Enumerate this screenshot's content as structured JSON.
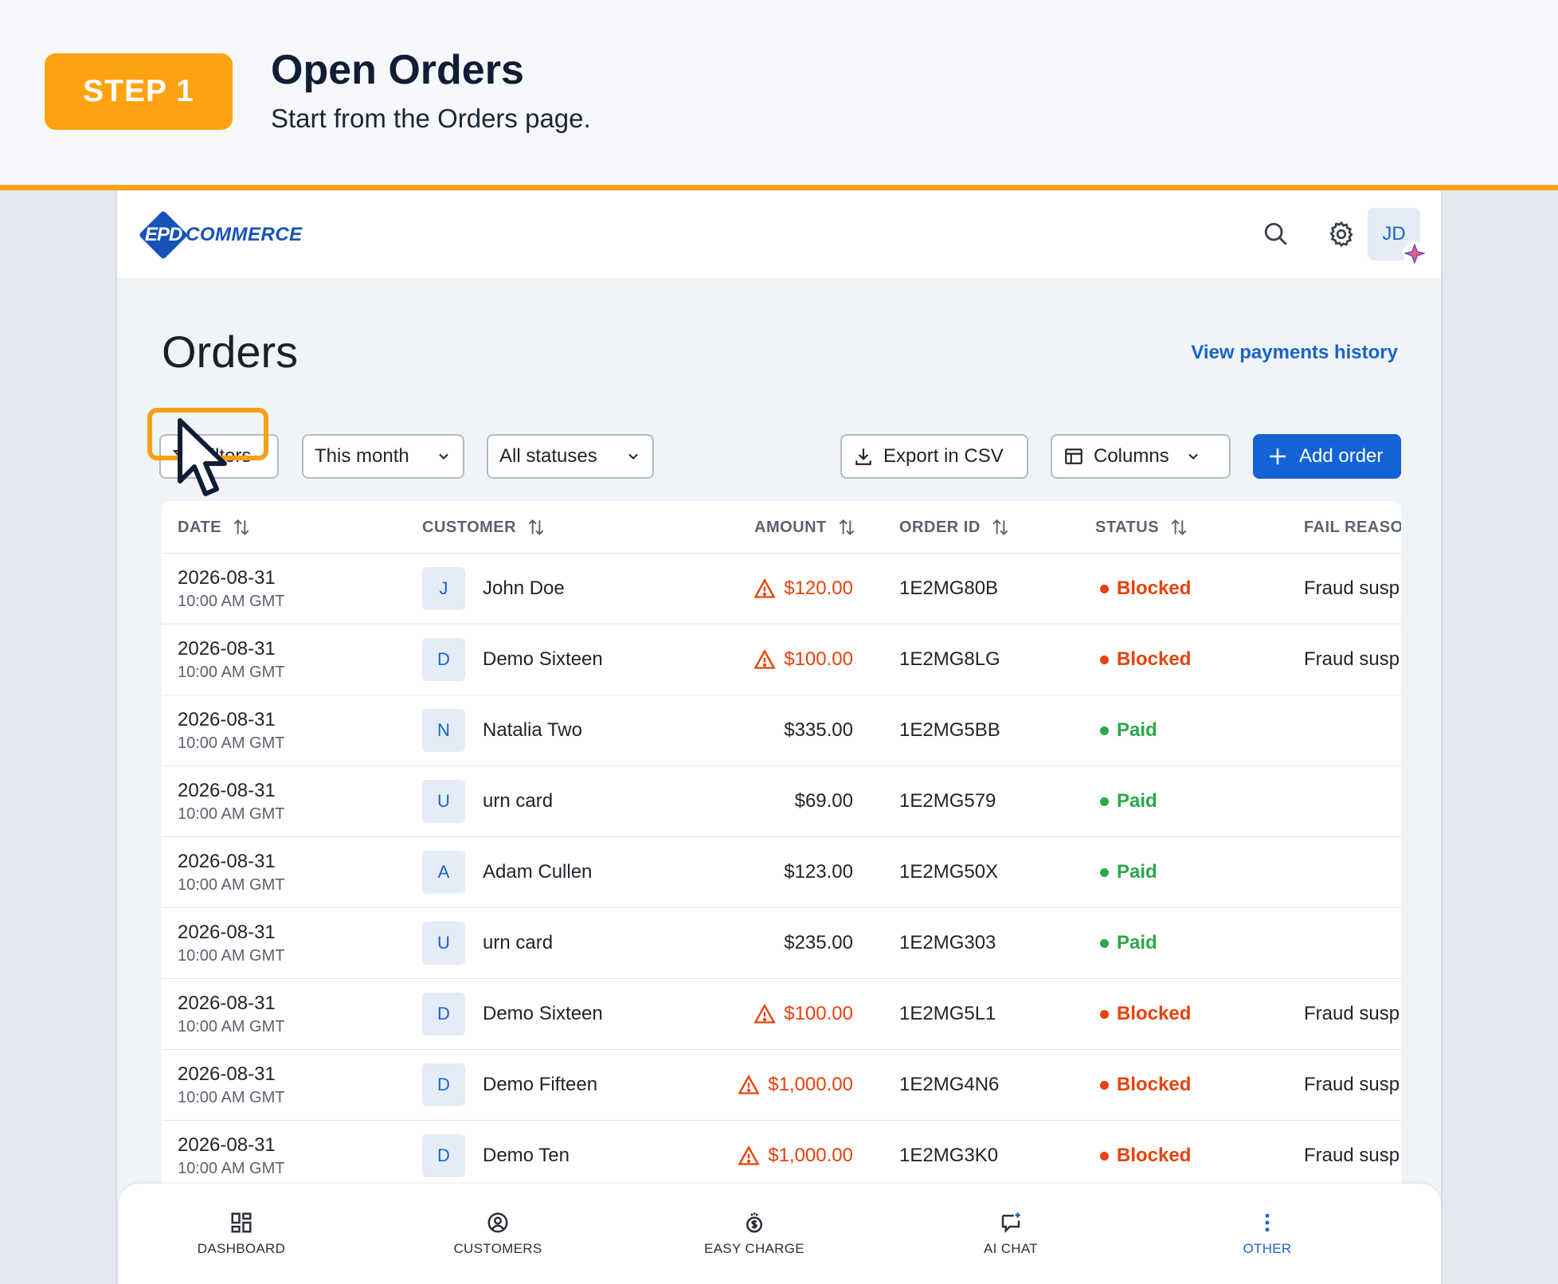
{
  "tutorial": {
    "step_label": "STEP 1",
    "title": "Open Orders",
    "subtitle": "Start from the Orders page."
  },
  "app": {
    "logo_mark": "EPD",
    "logo_text": "COMMERCE",
    "avatar_initials": "JD"
  },
  "page": {
    "title": "Orders",
    "payments_link": "View payments history"
  },
  "toolbar": {
    "filters_label": "Filters",
    "date_filter": "This month",
    "status_filter": "All statuses",
    "export_label": "Export in CSV",
    "columns_label": "Columns",
    "add_label": "Add order"
  },
  "table": {
    "headers": [
      "DATE",
      "CUSTOMER",
      "AMOUNT",
      "ORDER ID",
      "STATUS",
      "FAIL REASON"
    ],
    "rows": [
      {
        "date": "2026-08-31",
        "time": "10:00 AM GMT",
        "initial": "J",
        "customer": "John Doe",
        "amount": "$120.00",
        "warn": true,
        "order_id": "1E2MG80B",
        "status": "Blocked",
        "fail_reason": "Fraud susp"
      },
      {
        "date": "2026-08-31",
        "time": "10:00 AM GMT",
        "initial": "D",
        "customer": "Demo Sixteen",
        "amount": "$100.00",
        "warn": true,
        "order_id": "1E2MG8LG",
        "status": "Blocked",
        "fail_reason": "Fraud susp"
      },
      {
        "date": "2026-08-31",
        "time": "10:00 AM GMT",
        "initial": "N",
        "customer": "Natalia Two",
        "amount": "$335.00",
        "warn": false,
        "order_id": "1E2MG5BB",
        "status": "Paid",
        "fail_reason": ""
      },
      {
        "date": "2026-08-31",
        "time": "10:00 AM GMT",
        "initial": "U",
        "customer": "urn card",
        "amount": "$69.00",
        "warn": false,
        "order_id": "1E2MG579",
        "status": "Paid",
        "fail_reason": ""
      },
      {
        "date": "2026-08-31",
        "time": "10:00 AM GMT",
        "initial": "A",
        "customer": "Adam Cullen",
        "amount": "$123.00",
        "warn": false,
        "order_id": "1E2MG50X",
        "status": "Paid",
        "fail_reason": ""
      },
      {
        "date": "2026-08-31",
        "time": "10:00 AM GMT",
        "initial": "U",
        "customer": "urn card",
        "amount": "$235.00",
        "warn": false,
        "order_id": "1E2MG303",
        "status": "Paid",
        "fail_reason": ""
      },
      {
        "date": "2026-08-31",
        "time": "10:00 AM GMT",
        "initial": "D",
        "customer": "Demo Sixteen",
        "amount": "$100.00",
        "warn": true,
        "order_id": "1E2MG5L1",
        "status": "Blocked",
        "fail_reason": "Fraud susp"
      },
      {
        "date": "2026-08-31",
        "time": "10:00 AM GMT",
        "initial": "D",
        "customer": "Demo Fifteen",
        "amount": "$1,000.00",
        "warn": true,
        "order_id": "1E2MG4N6",
        "status": "Blocked",
        "fail_reason": "Fraud susp"
      },
      {
        "date": "2026-08-31",
        "time": "10:00 AM GMT",
        "initial": "D",
        "customer": "Demo Ten",
        "amount": "$1,000.00",
        "warn": true,
        "order_id": "1E2MG3K0",
        "status": "Blocked",
        "fail_reason": "Fraud susp"
      }
    ]
  },
  "bottom_nav": [
    {
      "label": "DASHBOARD",
      "icon": "dashboard-icon"
    },
    {
      "label": "CUSTOMERS",
      "icon": "customers-icon"
    },
    {
      "label": "EASY CHARGE",
      "icon": "easy-charge-icon"
    },
    {
      "label": "AI CHAT",
      "icon": "ai-chat-icon"
    },
    {
      "label": "OTHER",
      "icon": "more-vertical-icon",
      "active": true
    }
  ],
  "colors": {
    "accent": "#1363d6",
    "step_badge": "#ffa212",
    "blocked": "#e8410c",
    "paid": "#2aa84a"
  }
}
